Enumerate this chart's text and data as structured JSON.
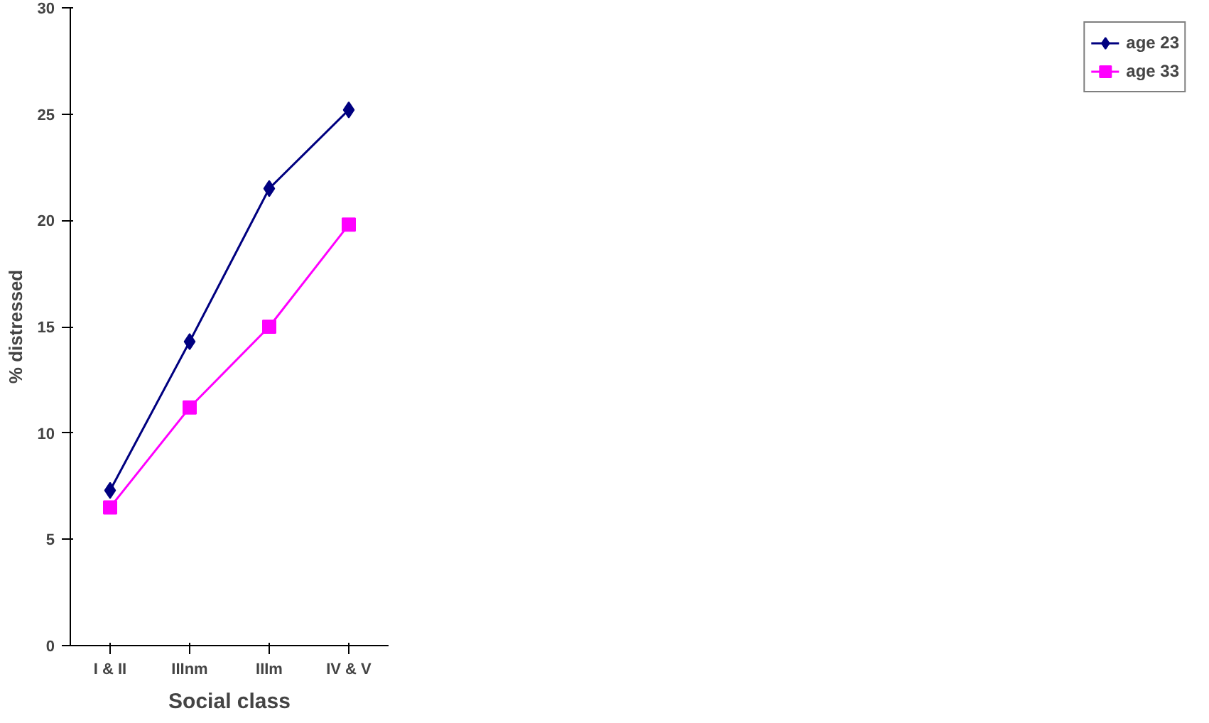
{
  "chart_data": {
    "type": "line",
    "xlabel": "Social class",
    "ylabel": "% distressed",
    "categories": [
      "I & II",
      "IIInm",
      "IIIm",
      "IV & V"
    ],
    "ylim": [
      0,
      30
    ],
    "yticks": [
      0,
      5,
      10,
      15,
      20,
      25,
      30
    ],
    "grid": false,
    "legend": "right",
    "series": [
      {
        "name": "age 23",
        "color": "#000080",
        "marker": "diamond",
        "values": [
          7.3,
          14.3,
          21.5,
          25.2
        ]
      },
      {
        "name": "age 33",
        "color": "#ff00ff",
        "marker": "square",
        "values": [
          6.5,
          11.2,
          15.0,
          19.8
        ]
      }
    ]
  }
}
